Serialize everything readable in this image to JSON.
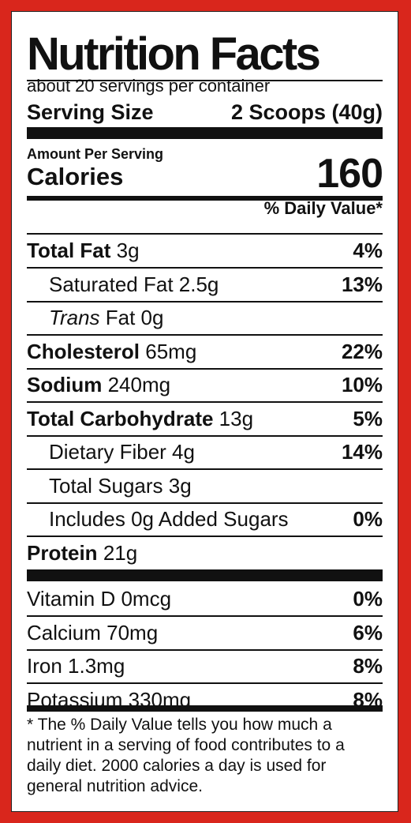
{
  "label": {
    "title": "Nutrition Facts",
    "servings_per_container": "about 20 servings per container",
    "serving_size_label": "Serving Size",
    "serving_size_value": "2 Scoops (40g)",
    "amount_per_serving": "Amount Per Serving",
    "calories_label": "Calories",
    "calories_value": "160",
    "daily_value_header": "% Daily Value*"
  },
  "nutrients": [
    {
      "label": "Total Fat",
      "amount": "3g",
      "dv": "4%"
    },
    {
      "label": "Saturated Fat 2.5g",
      "dv": "13%"
    },
    {
      "label_italic": "Trans",
      "label": "Fat 0g"
    },
    {
      "label": "Cholesterol",
      "amount": "65mg",
      "dv": "22%"
    },
    {
      "label": "Sodium",
      "amount": "240mg",
      "dv": "10%"
    },
    {
      "label": "Total Carbohydrate",
      "amount": "13g",
      "dv": "5%"
    },
    {
      "label": "Dietary Fiber 4g",
      "dv": "14%"
    },
    {
      "label": "Total Sugars 3g"
    },
    {
      "label": "Includes 0g Added Sugars",
      "dv": "0%"
    },
    {
      "label": "Protein",
      "amount": "21g"
    }
  ],
  "vitamins": [
    {
      "label": "Vitamin D 0mcg",
      "dv": "0%"
    },
    {
      "label": "Calcium 70mg",
      "dv": "6%"
    },
    {
      "label": "Iron 1.3mg",
      "dv": "8%"
    },
    {
      "label": "Potassium 330mg",
      "dv": "8%"
    }
  ],
  "footnote": "* The % Daily Value tells you how much a nutrient in a serving of food contributes to a daily diet. 2000 calories a day is used for general nutrition advice.",
  "colors": {
    "border": "#d9261c",
    "ink": "#111111",
    "background": "#ffffff"
  }
}
